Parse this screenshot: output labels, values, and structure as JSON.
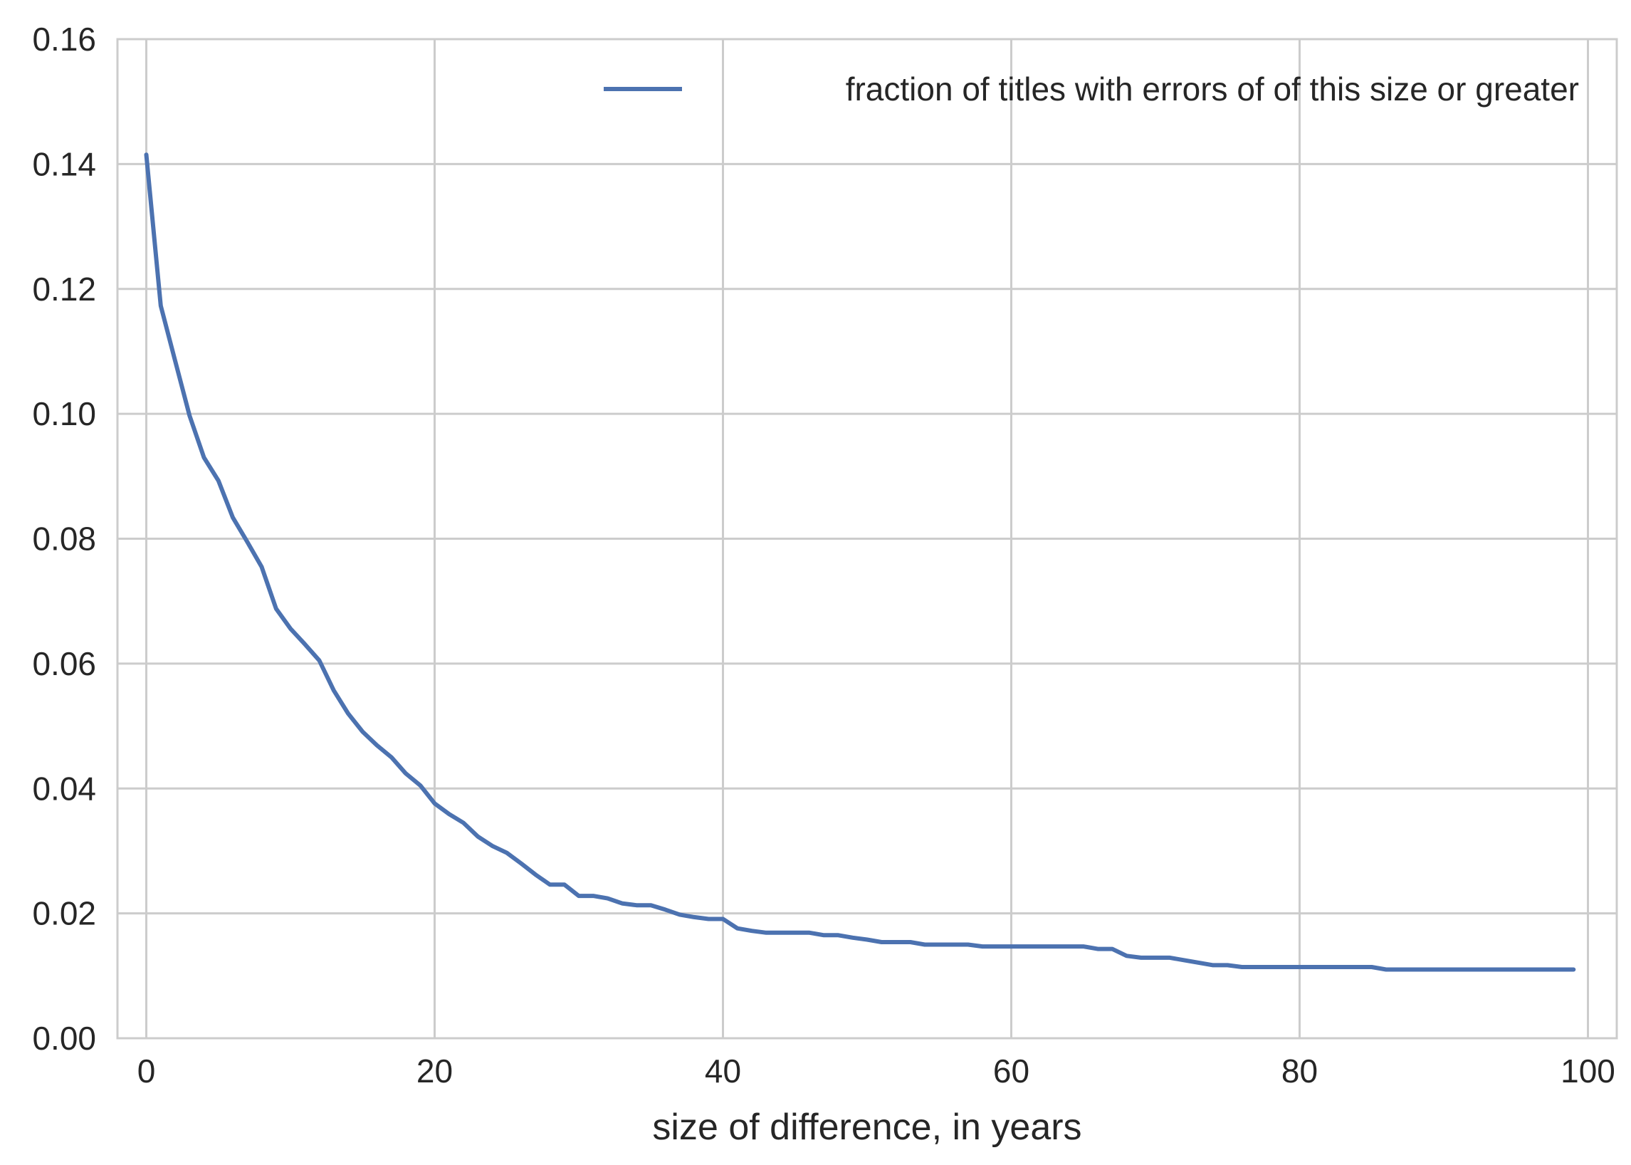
{
  "chart_data": {
    "type": "line",
    "xlabel": "size of difference, in years",
    "ylabel": "",
    "xlim": [
      -2,
      102
    ],
    "ylim": [
      0.0,
      0.16
    ],
    "xticks": [
      "0",
      "20",
      "40",
      "60",
      "80",
      "100"
    ],
    "yticks": [
      "0.00",
      "0.02",
      "0.04",
      "0.06",
      "0.08",
      "0.10",
      "0.12",
      "0.14",
      "0.16"
    ],
    "grid": true,
    "legend_position": "top-right",
    "series": [
      {
        "name": "fraction of titles with errors of of this size or greater",
        "color": "#4c72b0",
        "x": [
          0,
          1,
          2,
          3,
          4,
          5,
          6,
          7,
          8,
          9,
          10,
          11,
          12,
          13,
          14,
          15,
          16,
          17,
          18,
          19,
          20,
          21,
          22,
          23,
          24,
          25,
          26,
          27,
          28,
          29,
          30,
          31,
          32,
          33,
          34,
          35,
          36,
          37,
          38,
          39,
          40,
          41,
          42,
          43,
          44,
          45,
          46,
          47,
          48,
          49,
          50,
          51,
          52,
          53,
          54,
          55,
          56,
          57,
          58,
          59,
          60,
          61,
          62,
          63,
          64,
          65,
          66,
          67,
          68,
          69,
          70,
          71,
          72,
          73,
          74,
          75,
          76,
          77,
          78,
          79,
          80,
          81,
          82,
          83,
          84,
          85,
          86,
          87,
          88,
          89,
          90,
          91,
          92,
          93,
          94,
          95,
          96,
          97,
          98,
          99
        ],
        "values": [
          0.1415,
          0.1173,
          0.1085,
          0.0997,
          0.093,
          0.0893,
          0.0834,
          0.0795,
          0.0755,
          0.0688,
          0.0656,
          0.0631,
          0.0605,
          0.0557,
          0.052,
          0.0491,
          0.0469,
          0.045,
          0.0424,
          0.0405,
          0.0376,
          0.0359,
          0.0345,
          0.0323,
          0.0308,
          0.0297,
          0.028,
          0.0262,
          0.0246,
          0.0246,
          0.0228,
          0.0228,
          0.0224,
          0.0216,
          0.0213,
          0.0213,
          0.0206,
          0.0198,
          0.0194,
          0.0191,
          0.0191,
          0.0176,
          0.0172,
          0.0169,
          0.0169,
          0.0169,
          0.0169,
          0.0165,
          0.0165,
          0.0161,
          0.0158,
          0.0154,
          0.0154,
          0.0154,
          0.015,
          0.015,
          0.015,
          0.015,
          0.0147,
          0.0147,
          0.0147,
          0.0147,
          0.0147,
          0.0147,
          0.0147,
          0.0147,
          0.0143,
          0.0143,
          0.0132,
          0.0129,
          0.0129,
          0.0129,
          0.0125,
          0.0121,
          0.0117,
          0.0117,
          0.0114,
          0.0114,
          0.0114,
          0.0114,
          0.0114,
          0.0114,
          0.0114,
          0.0114,
          0.0114,
          0.0114,
          0.011,
          0.011,
          0.011,
          0.011,
          0.011,
          0.011,
          0.011,
          0.011,
          0.011,
          0.011,
          0.011,
          0.011,
          0.011,
          0.011
        ]
      }
    ]
  }
}
